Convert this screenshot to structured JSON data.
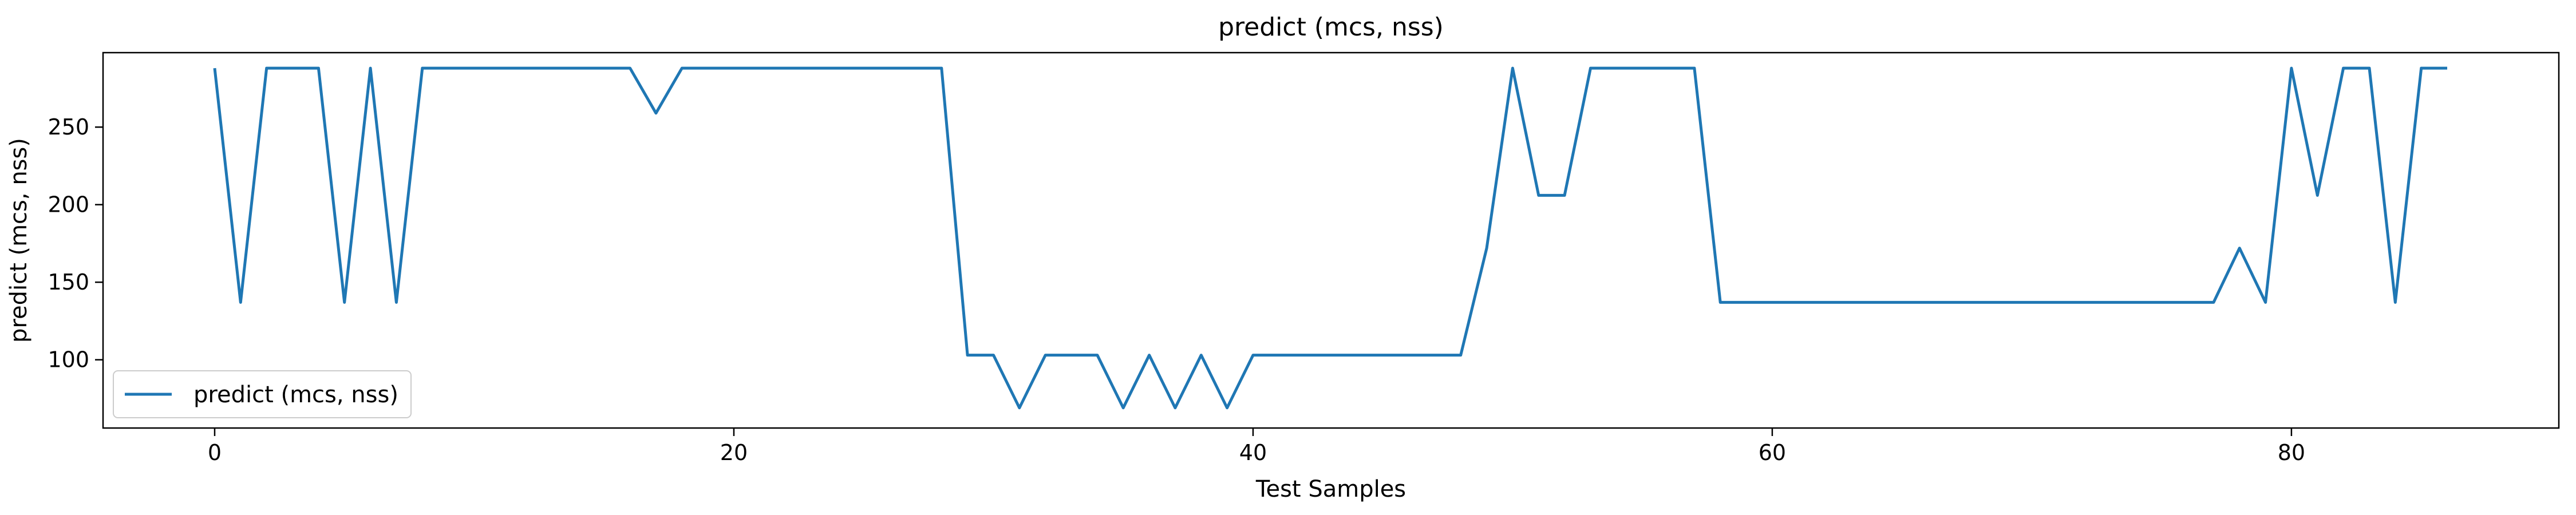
{
  "chart_data": {
    "type": "line",
    "title": "predict (mcs, nss)",
    "xlabel": "Test Samples",
    "ylabel": "predict (mcs, nss)",
    "xlim": [
      -4.3,
      90.3
    ],
    "ylim": [
      56,
      298
    ],
    "xticks": [
      0,
      20,
      40,
      60,
      80
    ],
    "yticks": [
      100,
      150,
      200,
      250
    ],
    "grid": false,
    "legend_position": "lower-left",
    "colors": {
      "series": "#1f77b4"
    },
    "series": [
      {
        "name": "predict (mcs, nss)",
        "x": [
          0,
          1,
          2,
          3,
          4,
          5,
          6,
          7,
          8,
          9,
          10,
          11,
          12,
          13,
          14,
          15,
          16,
          17,
          18,
          19,
          20,
          21,
          22,
          23,
          24,
          25,
          26,
          27,
          28,
          29,
          30,
          31,
          32,
          33,
          34,
          35,
          36,
          37,
          38,
          39,
          40,
          41,
          42,
          43,
          44,
          45,
          46,
          47,
          48,
          49,
          50,
          51,
          52,
          53,
          54,
          55,
          56,
          57,
          58,
          59,
          60,
          61,
          62,
          63,
          64,
          65,
          66,
          67,
          68,
          69,
          70,
          71,
          72,
          73,
          74,
          75,
          76,
          77,
          78,
          79,
          80,
          81,
          82,
          83,
          84,
          85,
          86
        ],
        "y": [
          288,
          137,
          288,
          288,
          288,
          137,
          288,
          137,
          288,
          288,
          288,
          288,
          288,
          288,
          288,
          288,
          288,
          259,
          288,
          288,
          288,
          288,
          288,
          288,
          288,
          288,
          288,
          288,
          288,
          103,
          103,
          69,
          103,
          103,
          103,
          69,
          103,
          69,
          103,
          69,
          103,
          103,
          103,
          103,
          103,
          103,
          103,
          103,
          103,
          172,
          288,
          206,
          206,
          288,
          288,
          288,
          288,
          288,
          137,
          137,
          137,
          137,
          137,
          137,
          137,
          137,
          137,
          137,
          137,
          137,
          137,
          137,
          137,
          137,
          137,
          137,
          137,
          137,
          172,
          137,
          288,
          206,
          288,
          288,
          137,
          288,
          288
        ]
      }
    ]
  }
}
